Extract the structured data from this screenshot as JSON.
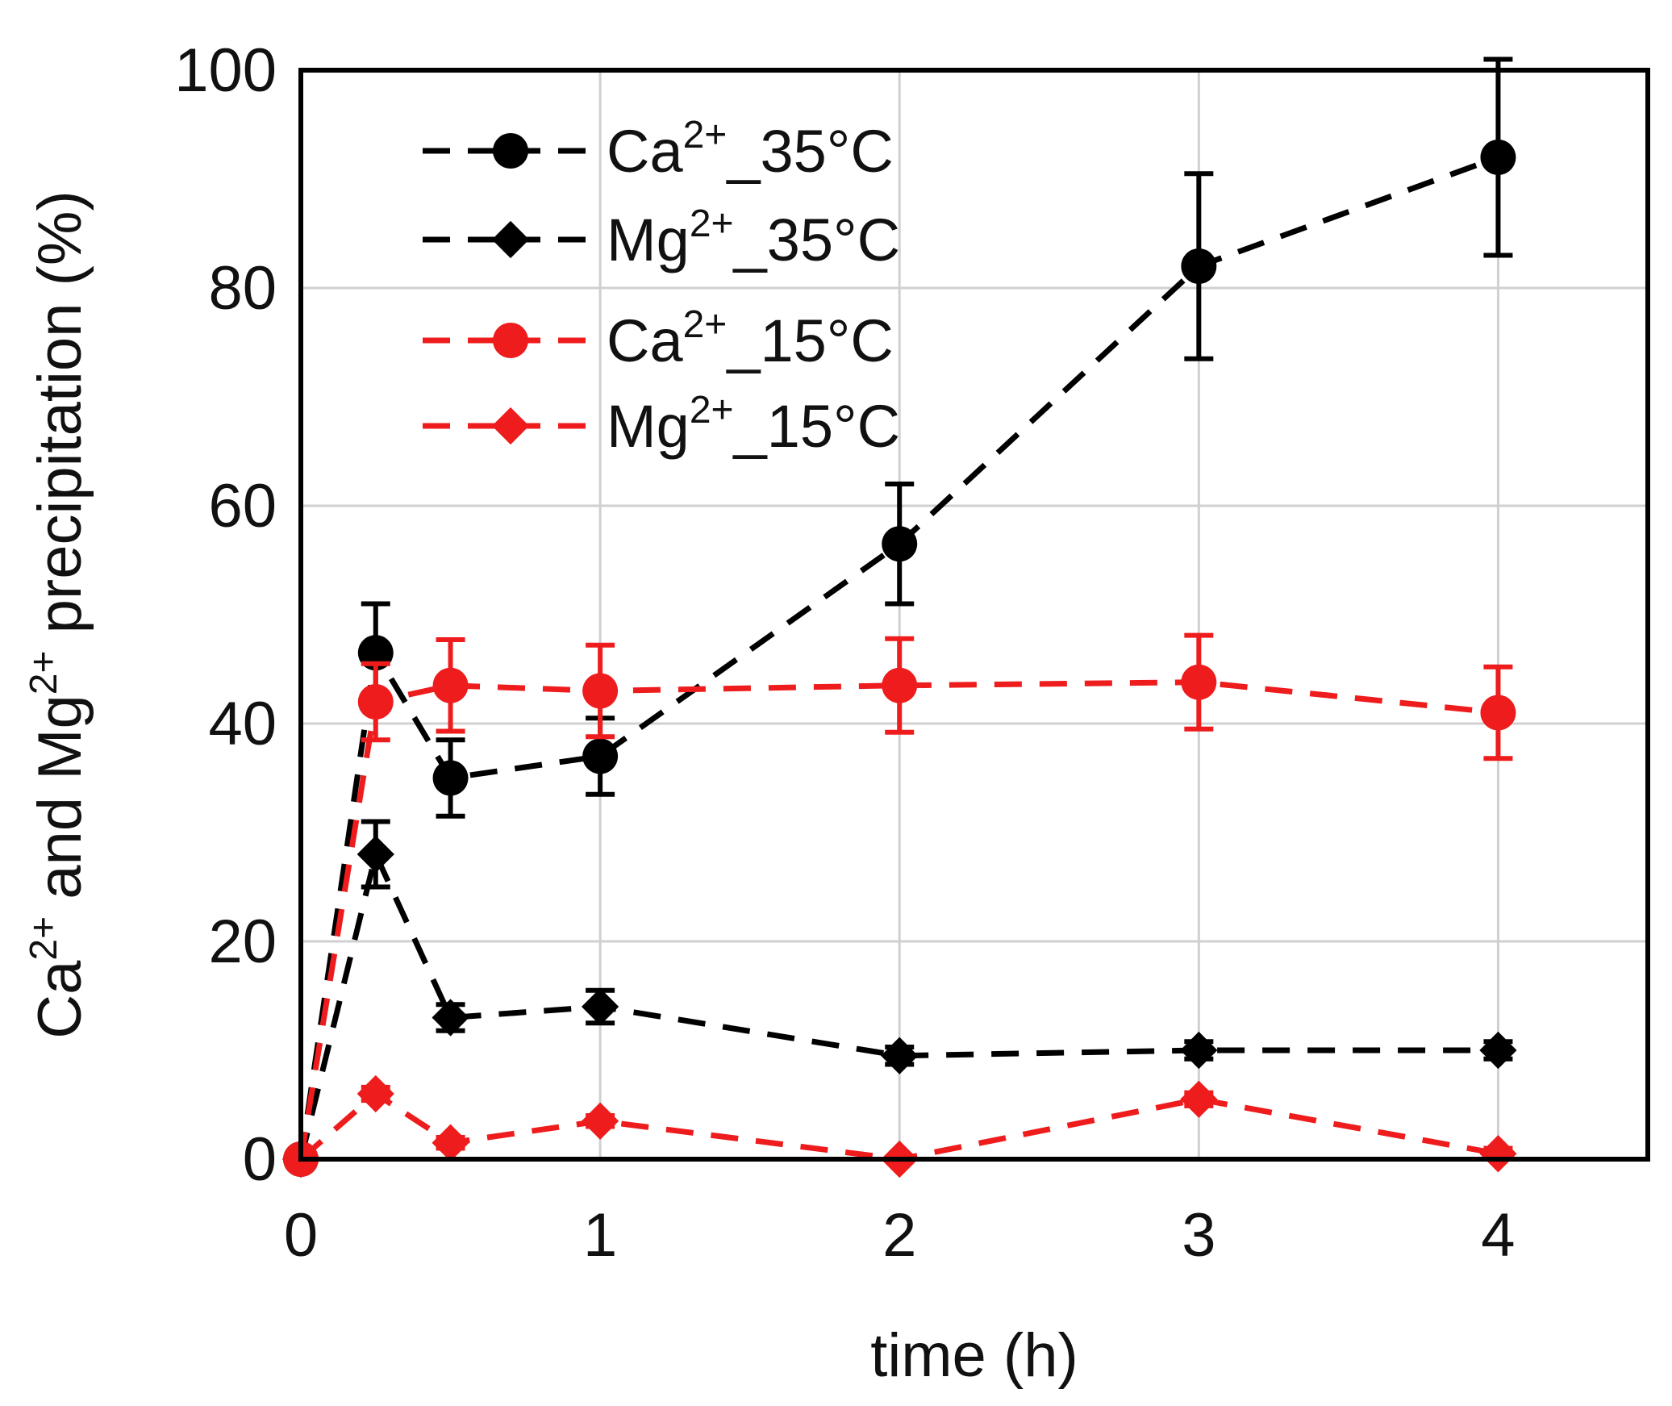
{
  "chart_data": {
    "type": "scatter",
    "title": "",
    "xlabel": "time (h)",
    "ylabel": {
      "parts": [
        "Ca",
        "2+",
        " and Mg",
        "2+",
        " precipitation (%)"
      ]
    },
    "xlim": [
      0,
      4.5
    ],
    "ylim": [
      0,
      100
    ],
    "xticks": [
      "0",
      "1",
      "2",
      "3",
      "4"
    ],
    "yticks": [
      "0",
      "20",
      "40",
      "60",
      "80",
      "100"
    ],
    "xtick_values": [
      0,
      1,
      2,
      3,
      4
    ],
    "ytick_values": [
      0,
      20,
      40,
      60,
      80,
      100
    ],
    "grid": true,
    "legend_position": "top-left",
    "series": [
      {
        "name": "Ca2+_35°C",
        "label_base": "Ca",
        "label_sup": "2+",
        "label_suffix": "_35°C",
        "marker": "circle",
        "color": "#000000",
        "x": [
          0,
          0.25,
          0.5,
          1,
          2,
          3,
          4
        ],
        "y": [
          0,
          46.5,
          35,
          37,
          56.5,
          82,
          92
        ],
        "err": [
          0,
          4.5,
          3.5,
          3.5,
          5.5,
          8.5,
          9
        ]
      },
      {
        "name": "Mg2+_35°C",
        "label_base": "Mg",
        "label_sup": "2+",
        "label_suffix": "_35°C",
        "marker": "diamond",
        "color": "#000000",
        "x": [
          0,
          0.25,
          0.5,
          1,
          2,
          3,
          4
        ],
        "y": [
          0,
          28,
          13,
          14,
          9.5,
          10,
          10
        ],
        "err": [
          0,
          3,
          1.2,
          1.5,
          0.8,
          0.8,
          0.8
        ]
      },
      {
        "name": "Ca2+_15°C",
        "label_base": "Ca",
        "label_sup": "2+",
        "label_suffix": "_15°C",
        "marker": "circle",
        "color": "#ee1c1c",
        "x": [
          0,
          0.25,
          0.5,
          1,
          2,
          3,
          4
        ],
        "y": [
          0,
          42,
          43.5,
          43,
          43.5,
          43.8,
          41
        ],
        "err": [
          0,
          3.5,
          4.2,
          4.2,
          4.3,
          4.3,
          4.2
        ]
      },
      {
        "name": "Mg2+_15°C",
        "label_base": "Mg",
        "label_sup": "2+",
        "label_suffix": "_15°C",
        "marker": "diamond",
        "color": "#ee1c1c",
        "x": [
          0,
          0.25,
          0.5,
          1,
          2,
          3,
          4
        ],
        "y": [
          0,
          6,
          1.5,
          3.5,
          0,
          5.5,
          0.5
        ],
        "err": [
          0,
          0.6,
          0.5,
          0.5,
          0,
          0.6,
          0.5
        ]
      }
    ]
  }
}
